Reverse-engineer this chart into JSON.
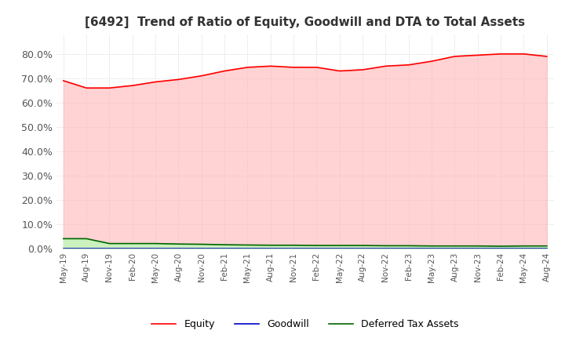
{
  "title": "[6492]  Trend of Ratio of Equity, Goodwill and DTA to Total Assets",
  "title_fontsize": 11,
  "background_color": "#ffffff",
  "grid_color": "#cccccc",
  "ylim": [
    0.0,
    0.88
  ],
  "yticks": [
    0.0,
    0.1,
    0.2,
    0.3,
    0.4,
    0.5,
    0.6,
    0.7,
    0.8
  ],
  "ytick_labels": [
    "0.0%",
    "10.0%",
    "20.0%",
    "30.0%",
    "40.0%",
    "50.0%",
    "60.0%",
    "70.0%",
    "80.0%"
  ],
  "equity": [
    0.69,
    0.66,
    0.66,
    0.67,
    0.685,
    0.695,
    0.71,
    0.73,
    0.745,
    0.75,
    0.745,
    0.745,
    0.73,
    0.735,
    0.75,
    0.755,
    0.77,
    0.79,
    0.795,
    0.8,
    0.8,
    0.79
  ],
  "goodwill": [
    0.0,
    0.0,
    0.0,
    0.0,
    0.0,
    0.0,
    0.0,
    0.0,
    0.0,
    0.0,
    0.0,
    0.0,
    0.0,
    0.0,
    0.0,
    0.0,
    0.0,
    0.0,
    0.0,
    0.0,
    0.0,
    0.0
  ],
  "dta": [
    0.04,
    0.04,
    0.02,
    0.02,
    0.02,
    0.018,
    0.017,
    0.015,
    0.014,
    0.013,
    0.013,
    0.012,
    0.012,
    0.012,
    0.011,
    0.011,
    0.01,
    0.01,
    0.01,
    0.009,
    0.01,
    0.01
  ],
  "equity_color": "#ff0000",
  "goodwill_color": "#0000cc",
  "dta_color": "#006400",
  "equity_fill_color": "#ffb6b6",
  "dta_fill_color": "#b6ffb6",
  "legend_labels": [
    "Equity",
    "Goodwill",
    "Deferred Tax Assets"
  ],
  "xtick_labels": [
    "May-19",
    "Aug-19",
    "Nov-19",
    "Feb-20",
    "May-20",
    "Aug-20",
    "Nov-20",
    "Feb-21",
    "May-21",
    "Aug-21",
    "Nov-21",
    "Feb-22",
    "May-22",
    "Aug-22",
    "Nov-22",
    "Feb-23",
    "May-23",
    "Aug-23",
    "Nov-23",
    "Feb-24",
    "May-24",
    "Aug-24"
  ]
}
